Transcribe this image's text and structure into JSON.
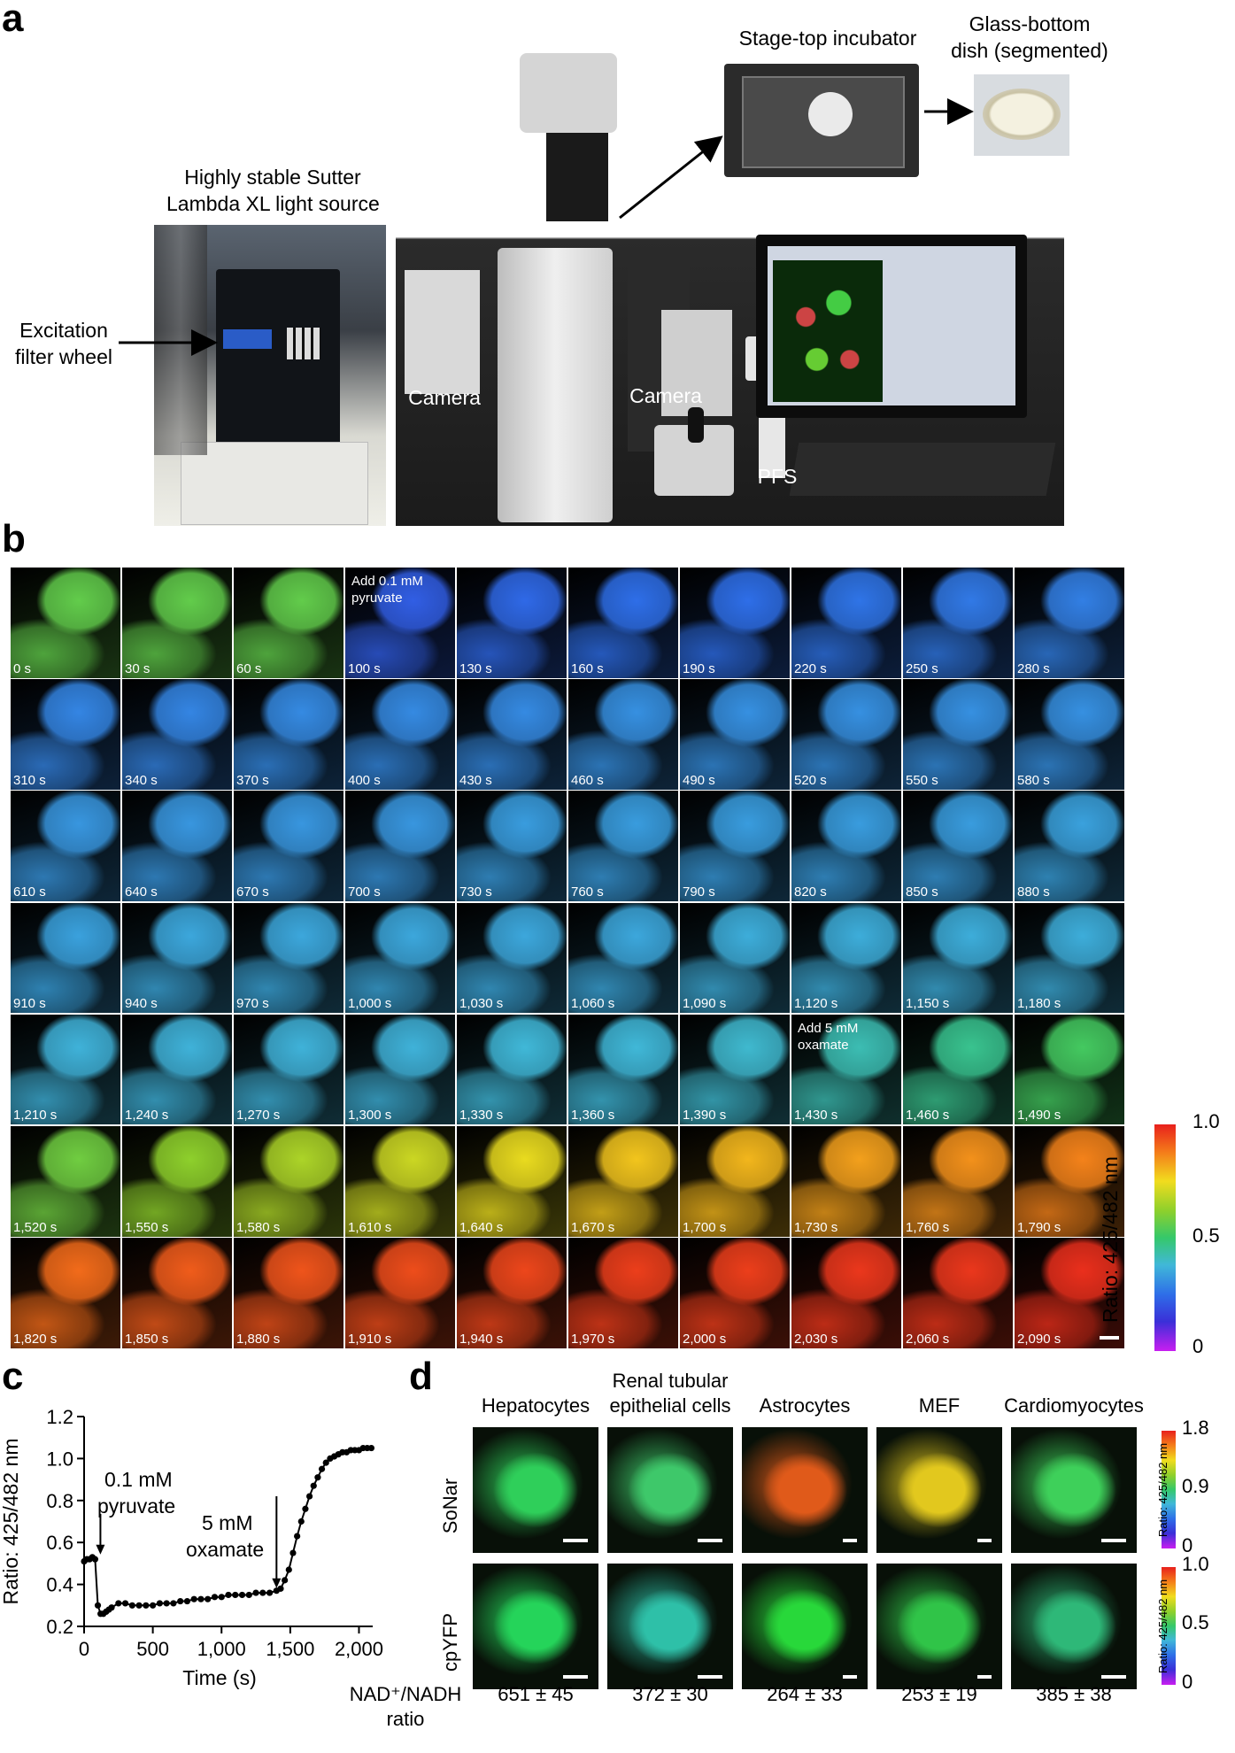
{
  "panel_labels": {
    "a": "a",
    "b": "b",
    "c": "c",
    "d": "d"
  },
  "panel_a": {
    "light_source_label": [
      "Highly stable Sutter",
      "Lambda XL light source"
    ],
    "filter_wheel_label": [
      "Excitation",
      "filter wheel"
    ],
    "incubator_label": "Stage-top incubator",
    "dish_label": [
      "Glass-bottom",
      "dish (segmented)"
    ],
    "camera_label_1": "Camera",
    "camera_label_2": "Camera",
    "pfs_label": "PFS"
  },
  "panel_b": {
    "times": [
      "0 s",
      "30 s",
      "60 s",
      "100 s",
      "130 s",
      "160 s",
      "190 s",
      "220 s",
      "250 s",
      "280 s",
      "310 s",
      "340 s",
      "370 s",
      "400 s",
      "430 s",
      "460 s",
      "490 s",
      "520 s",
      "550 s",
      "580 s",
      "610 s",
      "640 s",
      "670 s",
      "700 s",
      "730 s",
      "760 s",
      "790 s",
      "820 s",
      "850 s",
      "880 s",
      "910 s",
      "940 s",
      "970 s",
      "1,000 s",
      "1,030 s",
      "1,060 s",
      "1,090 s",
      "1,120 s",
      "1,150 s",
      "1,180 s",
      "1,210 s",
      "1,240 s",
      "1,270 s",
      "1,300 s",
      "1,330 s",
      "1,360 s",
      "1,390 s",
      "1,430 s",
      "1,460 s",
      "1,490 s",
      "1,520 s",
      "1,550 s",
      "1,580 s",
      "1,610 s",
      "1,640 s",
      "1,670 s",
      "1,700 s",
      "1,730 s",
      "1,760 s",
      "1,790 s",
      "1,820 s",
      "1,850 s",
      "1,880 s",
      "1,910 s",
      "1,940 s",
      "1,970 s",
      "2,000 s",
      "2,030 s",
      "2,060 s",
      "2,090 s"
    ],
    "ratios": [
      0.56,
      0.56,
      0.56,
      0.22,
      0.24,
      0.25,
      0.25,
      0.26,
      0.27,
      0.28,
      0.29,
      0.29,
      0.3,
      0.3,
      0.3,
      0.31,
      0.31,
      0.31,
      0.31,
      0.31,
      0.32,
      0.32,
      0.32,
      0.32,
      0.33,
      0.33,
      0.33,
      0.33,
      0.33,
      0.34,
      0.34,
      0.35,
      0.35,
      0.35,
      0.35,
      0.35,
      0.36,
      0.36,
      0.36,
      0.36,
      0.37,
      0.37,
      0.37,
      0.37,
      0.38,
      0.38,
      0.39,
      0.42,
      0.46,
      0.52,
      0.58,
      0.62,
      0.66,
      0.7,
      0.74,
      0.78,
      0.8,
      0.83,
      0.85,
      0.87,
      0.9,
      0.92,
      0.93,
      0.94,
      0.95,
      0.96,
      0.96,
      0.97,
      0.97,
      0.98
    ],
    "annotations": [
      {
        "index": 3,
        "text": "Add 0.1 mM\npyruvate"
      },
      {
        "index": 47,
        "text": "Add 5 mM\noxamate"
      }
    ],
    "colorbar": {
      "label": "Ratio: 425/482 nm",
      "ticks": [
        "1.0",
        "0.5",
        "0"
      ]
    }
  },
  "chart_data": {
    "type": "line",
    "title": "",
    "xlabel": "Time (s)",
    "ylabel": "Ratio: 425/482 nm",
    "xlim": [
      0,
      2100
    ],
    "ylim": [
      0.2,
      1.2
    ],
    "xticks": [
      "0",
      "500",
      "1,000",
      "1,500",
      "2,000"
    ],
    "yticks": [
      "0.2",
      "0.4",
      "0.6",
      "0.8",
      "1.0",
      "1.2"
    ],
    "x": [
      0,
      20,
      40,
      60,
      80,
      100,
      120,
      140,
      160,
      180,
      200,
      250,
      300,
      350,
      400,
      450,
      500,
      550,
      600,
      650,
      700,
      750,
      800,
      850,
      900,
      950,
      1000,
      1050,
      1100,
      1150,
      1200,
      1250,
      1300,
      1350,
      1400,
      1430,
      1460,
      1490,
      1520,
      1550,
      1580,
      1610,
      1640,
      1670,
      1700,
      1730,
      1760,
      1790,
      1820,
      1850,
      1880,
      1910,
      1940,
      1970,
      2000,
      2030,
      2060,
      2090
    ],
    "y": [
      0.51,
      0.52,
      0.52,
      0.53,
      0.52,
      0.3,
      0.26,
      0.26,
      0.27,
      0.28,
      0.29,
      0.31,
      0.31,
      0.3,
      0.3,
      0.3,
      0.3,
      0.31,
      0.31,
      0.31,
      0.32,
      0.32,
      0.33,
      0.33,
      0.33,
      0.34,
      0.34,
      0.35,
      0.35,
      0.35,
      0.35,
      0.36,
      0.36,
      0.36,
      0.37,
      0.38,
      0.42,
      0.47,
      0.55,
      0.63,
      0.7,
      0.76,
      0.82,
      0.87,
      0.91,
      0.95,
      0.98,
      1.0,
      1.01,
      1.02,
      1.03,
      1.03,
      1.04,
      1.04,
      1.04,
      1.05,
      1.05,
      1.05
    ],
    "annotations": [
      {
        "text": [
          "0.1 mM",
          "pyruvate"
        ],
        "x": 80
      },
      {
        "text": [
          "5 mM",
          "oxamate"
        ],
        "x": 1400
      }
    ]
  },
  "panel_d": {
    "columns": [
      "Hepatocytes",
      [
        "Renal tubular",
        "epithelial cells"
      ],
      "Astrocytes",
      "MEF",
      "Cardiomyocytes"
    ],
    "rows": [
      "SoNar",
      "cpYFP"
    ],
    "colorbar_sonar": {
      "label": "Ratio: 425/482 nm",
      "ticks": [
        "1.8",
        "0.9",
        "0"
      ]
    },
    "colorbar_cpyfp": {
      "label": "Ratio: 425/482 nm",
      "ticks": [
        "1.0",
        "0.5",
        "0"
      ]
    },
    "ratio_label": [
      "NAD⁺/NADH",
      "ratio"
    ],
    "ratios": [
      "651 ± 45",
      "372 ± 30",
      "264 ± 33",
      "253 ± 19",
      "385 ± 38"
    ],
    "sonar_colors": [
      "#2fcf5a",
      "#3ec86a",
      "#e05a1a",
      "#e2c81e",
      "#3ed05a"
    ],
    "cpyfp_colors": [
      "#25d45a",
      "#2ec0a8",
      "#28d83a",
      "#30c448",
      "#2eb878"
    ]
  }
}
